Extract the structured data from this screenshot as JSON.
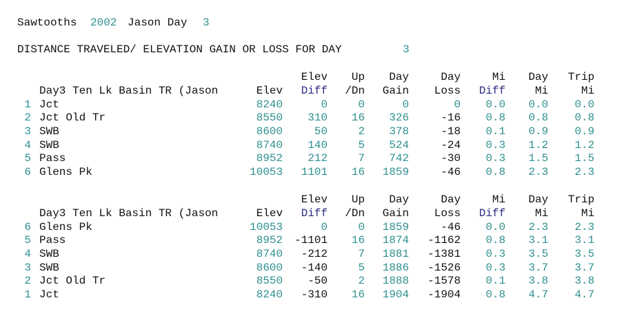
{
  "header": {
    "title": [
      "Sawtooths",
      "2002",
      "Jason Day",
      "3"
    ],
    "subtitle": [
      "DISTANCE TRAVELED/ ELEVATION GAIN OR LOSS FOR DAY",
      "3"
    ]
  },
  "tables": [
    {
      "header_top": [
        "Elev",
        "Up",
        "Day",
        "Day",
        "Mi",
        "Day",
        "Trip"
      ],
      "header": [
        "Day3 Ten Lk Basin TR (Jason",
        "Elev",
        "Diff",
        "/Dn",
        "Gain",
        "Loss",
        "Diff",
        "Mi",
        "Mi"
      ],
      "rows": [
        [
          "1",
          "Jct",
          "8240",
          "0",
          "0",
          "0",
          "0",
          "0.0",
          "0.0",
          "0.0"
        ],
        [
          "2",
          "Jct Old Tr",
          "8550",
          "310",
          "16",
          "326",
          "-16",
          "0.8",
          "0.8",
          "0.8"
        ],
        [
          "3",
          "SWB",
          "8600",
          "50",
          "2",
          "378",
          "-18",
          "0.1",
          "0.9",
          "0.9"
        ],
        [
          "4",
          "SWB",
          "8740",
          "140",
          "5",
          "524",
          "-24",
          "0.3",
          "1.2",
          "1.2"
        ],
        [
          "5",
          "Pass",
          "8952",
          "212",
          "7",
          "742",
          "-30",
          "0.3",
          "1.5",
          "1.5"
        ],
        [
          "6",
          "Glens Pk",
          "10053",
          "1101",
          "16",
          "1859",
          "-46",
          "0.8",
          "2.3",
          "2.3"
        ]
      ]
    },
    {
      "header_top": [
        "Elev",
        "Up",
        "Day",
        "Day",
        "Mi",
        "Day",
        "Trip"
      ],
      "header": [
        "Day3 Ten Lk Basin TR (Jason",
        "Elev",
        "Diff",
        "/Dn",
        "Gain",
        "Loss",
        "Diff",
        "Mi",
        "Mi"
      ],
      "rows": [
        [
          "6",
          "Glens Pk",
          "10053",
          "0",
          "0",
          "1859",
          "-46",
          "0.0",
          "2.3",
          "2.3"
        ],
        [
          "5",
          "Pass",
          "8952",
          "-1101",
          "16",
          "1874",
          "-1162",
          "0.8",
          "3.1",
          "3.1"
        ],
        [
          "4",
          "SWB",
          "8740",
          "-212",
          "7",
          "1881",
          "-1381",
          "0.3",
          "3.5",
          "3.5"
        ],
        [
          "3",
          "SWB",
          "8600",
          "-140",
          "5",
          "1886",
          "-1526",
          "0.3",
          "3.7",
          "3.7"
        ],
        [
          "2",
          "Jct Old Tr",
          "8550",
          "-50",
          "2",
          "1888",
          "-1578",
          "0.1",
          "3.8",
          "3.8"
        ],
        [
          "1",
          "Jct",
          "8240",
          "-310",
          "16",
          "1904",
          "-1904",
          "0.8",
          "4.7",
          "4.7"
        ]
      ]
    }
  ]
}
